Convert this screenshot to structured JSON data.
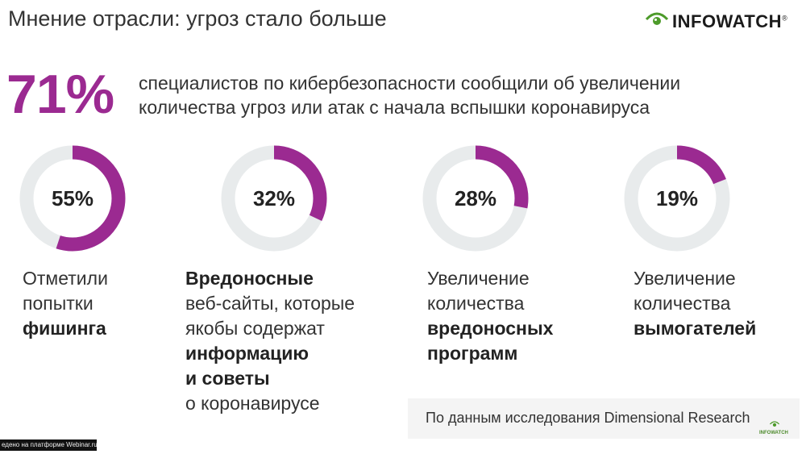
{
  "title": "Мнение отрасли: угроз стало больше",
  "logo": {
    "brand": "INFOWATCH",
    "reg": "®",
    "icon": "eye-icon",
    "accent": "#4d9b2a"
  },
  "headline": {
    "percent": "71%",
    "text": "специалистов по кибербезопасности сообщили об увеличении количества угроз или атак с начала вспышки коронавируса"
  },
  "colors": {
    "accent": "#9b2a91",
    "ring_track": "#e8ebec"
  },
  "stats": [
    {
      "percent": "55%",
      "value": 55,
      "lines": [
        {
          "text": "Отметили",
          "bold": false
        },
        {
          "text": "попытки",
          "bold": false
        },
        {
          "text": "фишинга",
          "bold": true
        }
      ]
    },
    {
      "percent": "32%",
      "value": 32,
      "lines": [
        {
          "text": "Вредоносные",
          "bold": true
        },
        {
          "text": "веб-сайты, которые",
          "bold": false
        },
        {
          "text": "якобы содержат",
          "bold": false
        },
        {
          "text": "информацию",
          "bold": true
        },
        {
          "text": "и советы",
          "bold": true
        },
        {
          "text": "о коронавирусе",
          "bold": false
        }
      ]
    },
    {
      "percent": "28%",
      "value": 28,
      "lines": [
        {
          "text": "Увеличение",
          "bold": false
        },
        {
          "text": "количества",
          "bold": false
        },
        {
          "text": "вредоносных",
          "bold": true
        },
        {
          "text": "программ",
          "bold": true
        }
      ]
    },
    {
      "percent": "19%",
      "value": 19,
      "lines": [
        {
          "text": "Увеличение",
          "bold": false
        },
        {
          "text": "количества",
          "bold": false
        },
        {
          "text": "вымогателей",
          "bold": true
        }
      ]
    }
  ],
  "source": "По данным исследования Dimensional Research",
  "corner_logo": "INFOWATCH",
  "overlay": "едено на платформе Webinar.ru"
}
